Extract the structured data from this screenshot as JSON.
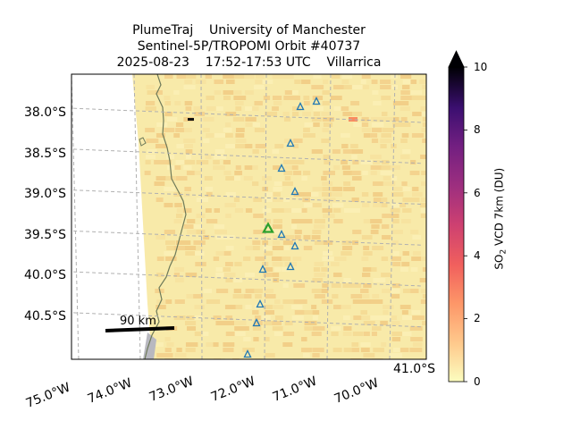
{
  "title": {
    "line1": "PlumeTraj    University of Manchester",
    "line2": "Sentinel-5P/TROPOMI Orbit #40737",
    "line3": "2025-08-23    17:52-17:53 UTC    Villarrica"
  },
  "lat_labels": [
    "38.0°S",
    "38.5°S",
    "39.0°S",
    "39.5°S",
    "40.0°S",
    "40.5°S"
  ],
  "lon_labels": [
    "75.0°W",
    "74.0°W",
    "73.0°W",
    "72.0°W",
    "71.0°W",
    "70.0°W"
  ],
  "corner_label": "41.0°S",
  "scale_bar": {
    "label": "90 km"
  },
  "colorbar": {
    "label_html": "SO",
    "label_sub": "2",
    "label_rest": " VCD 7km (DU)",
    "ticks": [
      "10",
      "8",
      "6",
      "4",
      "2",
      "0"
    ],
    "vmin": 0,
    "vmax": 10,
    "colormap": [
      "#fcfdbf",
      "#fec287",
      "#fc8961",
      "#e75263",
      "#b73779",
      "#832681",
      "#51127c",
      "#1c1044",
      "#000004"
    ]
  },
  "colors": {
    "background_field": "#f8e9a8",
    "ocean": "#ffffff",
    "coast": "#6e7a5a",
    "volcano_marker": "#1f77b4",
    "target_marker": "#2ca02c",
    "grid": "#b0b0b0"
  },
  "volcanoes": [
    {
      "lon": -71.45,
      "lat": -37.85
    },
    {
      "lon": -71.2,
      "lat": -37.8
    },
    {
      "lon": -71.5,
      "lat": -38.35
    },
    {
      "lon": -71.6,
      "lat": -38.7
    },
    {
      "lon": -71.45,
      "lat": -38.97
    },
    {
      "lon": -71.6,
      "lat": -39.45
    },
    {
      "lon": -71.45,
      "lat": -39.62
    },
    {
      "lon": -71.5,
      "lat": -39.88
    },
    {
      "lon": -71.95,
      "lat": -39.9
    },
    {
      "lon": -72.0,
      "lat": -40.33
    },
    {
      "lon": -72.05,
      "lat": -40.58
    },
    {
      "lon": -72.1,
      "lat": -40.98
    }
  ],
  "target_volcano": {
    "lon": -71.93,
    "lat": -39.42,
    "name": "Villarrica"
  }
}
